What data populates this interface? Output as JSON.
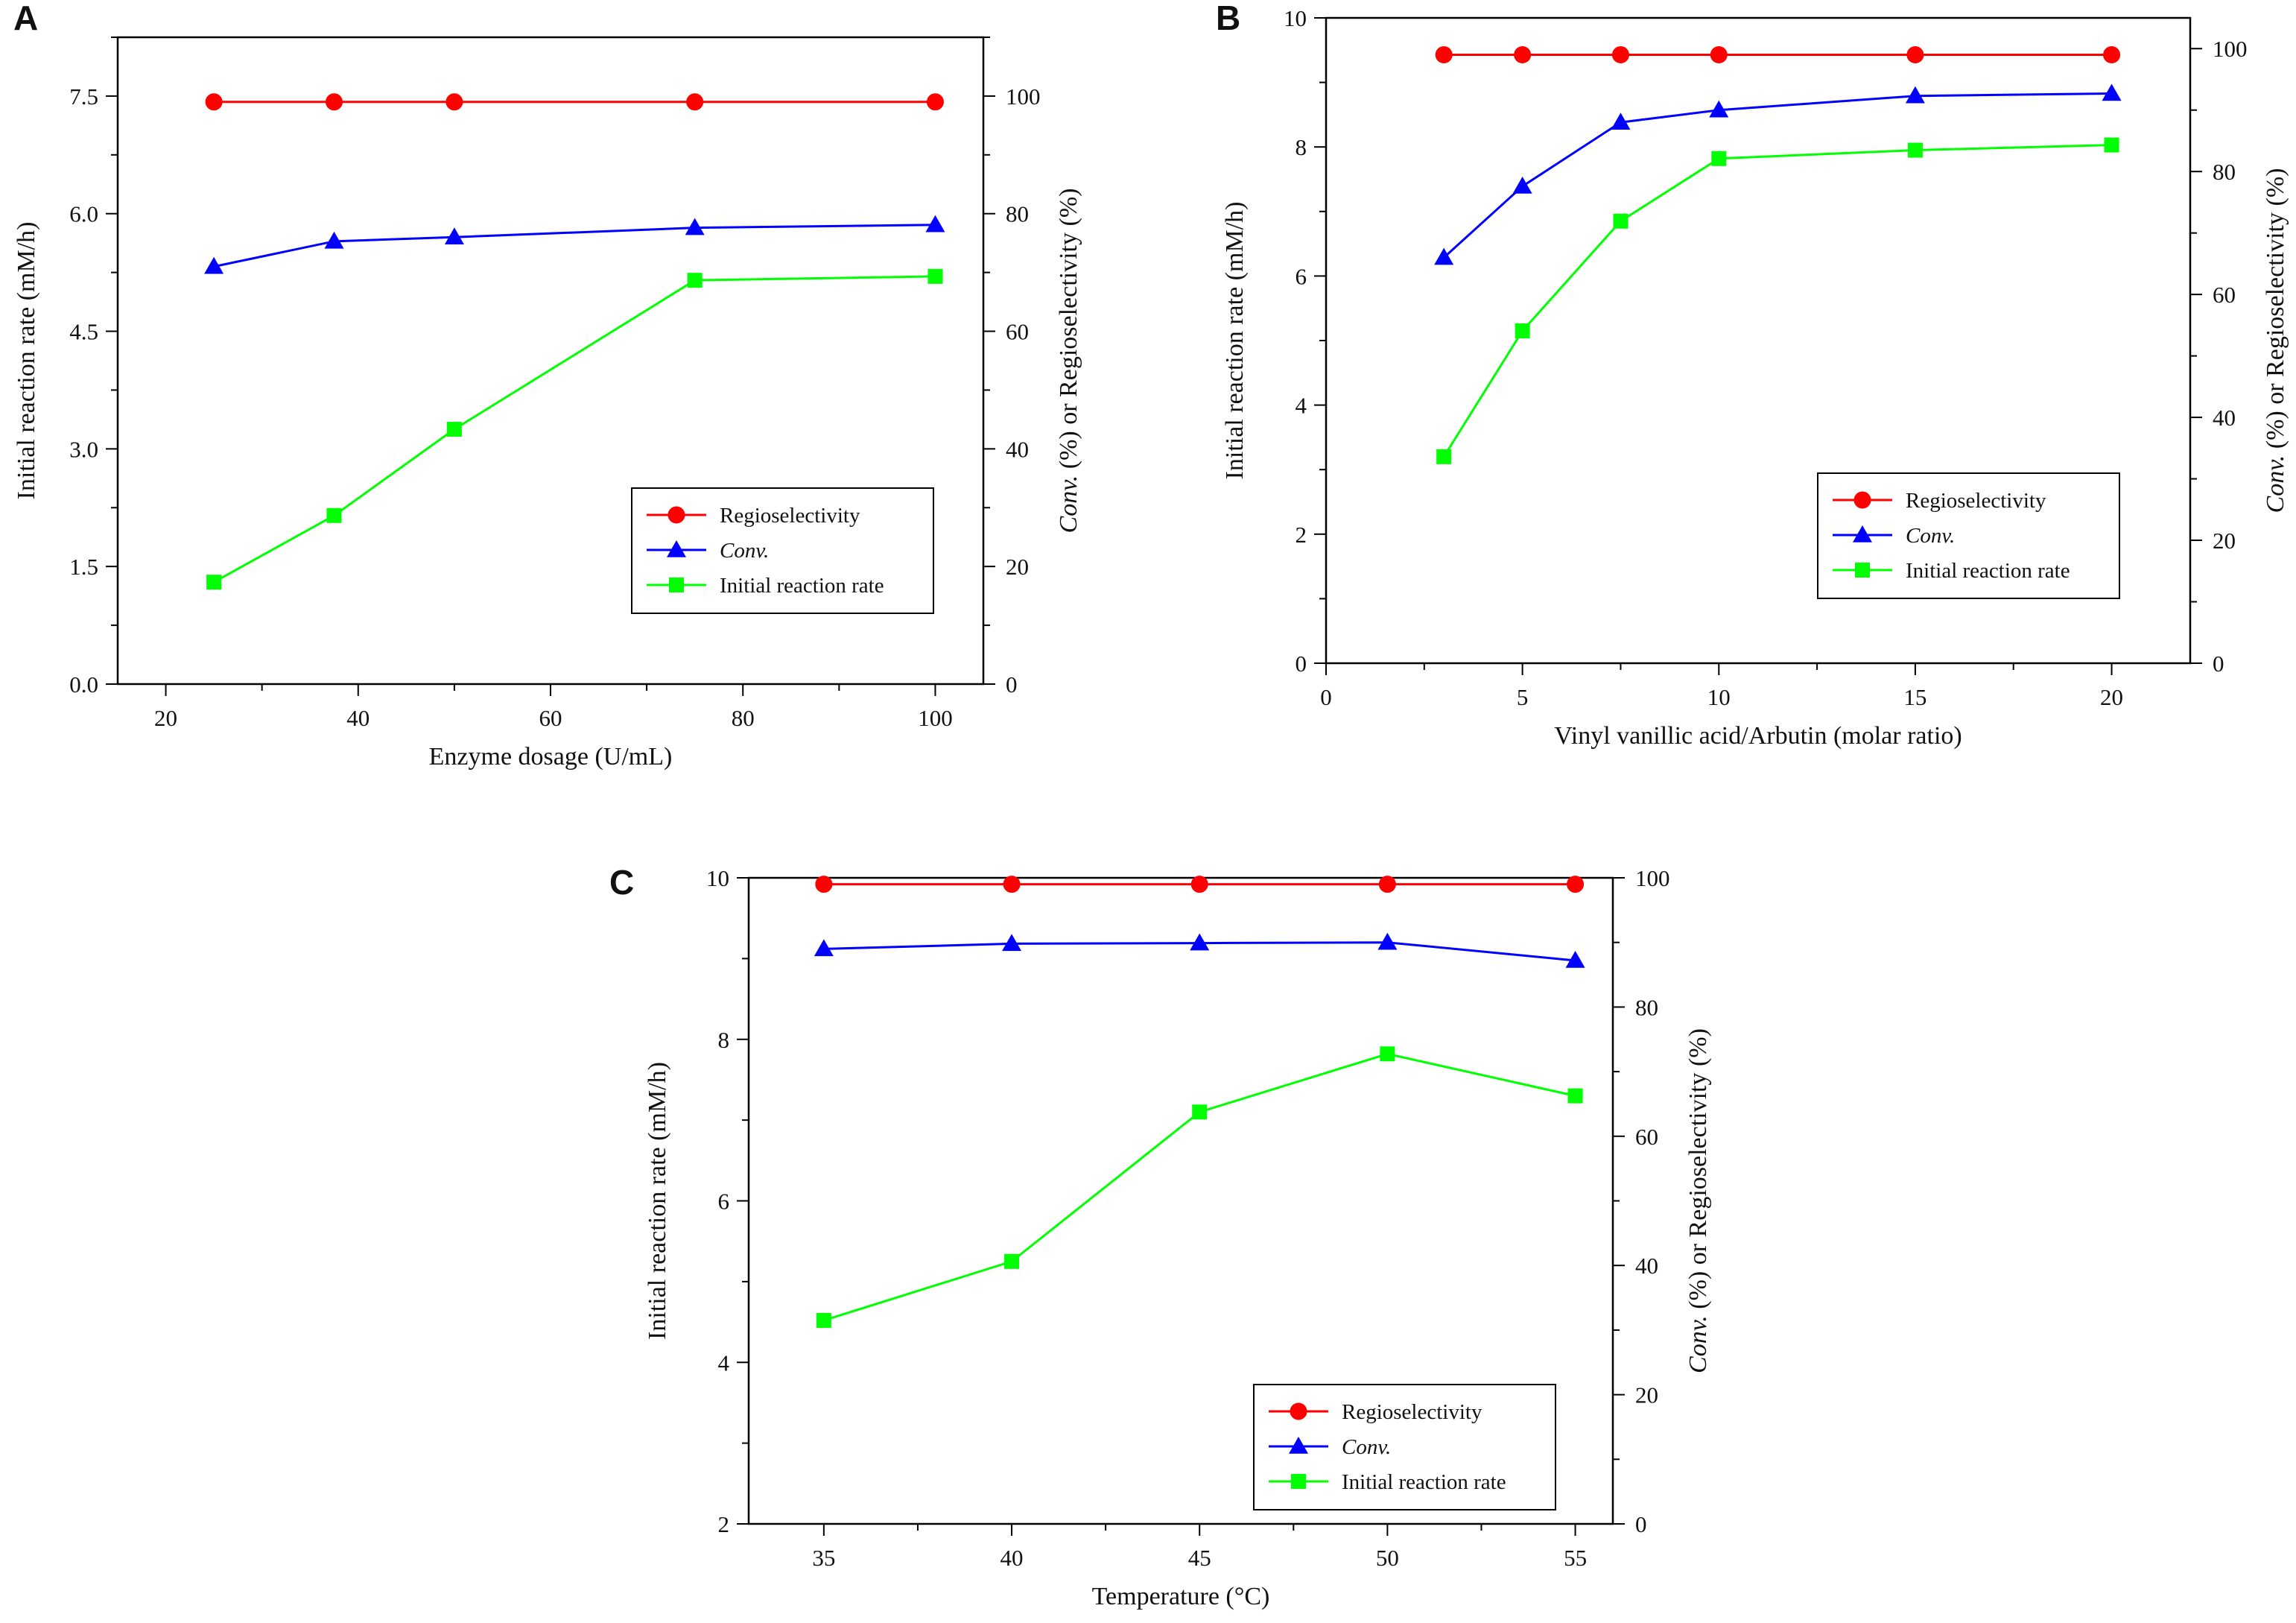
{
  "chart_data": [
    {
      "type": "line",
      "panel": "A",
      "xlabel": "Enzyme dosage (U/mL)",
      "ylabel": "Initial reaction rate (mM/h)",
      "y2label_italic": "Conv.",
      "y2label_rest": " (%) or Regioselectivity (%)",
      "xlim": [
        15,
        105
      ],
      "xticks": [
        20,
        40,
        60,
        80,
        100
      ],
      "xtick_labels": [
        "20",
        "40",
        "60",
        "80",
        "100"
      ],
      "ylim": [
        0,
        8.25
      ],
      "yticks": [
        0,
        1.5,
        3.0,
        4.5,
        6.0,
        7.5
      ],
      "ytick_labels": [
        "0.0",
        "1.5",
        "3.0",
        "4.5",
        "6.0",
        "7.5"
      ],
      "y2lim": [
        0,
        110
      ],
      "y2ticks": [
        0,
        20,
        40,
        60,
        80,
        100
      ],
      "y2tick_labels": [
        "0",
        "20",
        "40",
        "60",
        "80",
        "100"
      ],
      "legend": [
        "Regioselectivity",
        "Conv.",
        "Initial reaction rate"
      ],
      "legend_position": "bottom-right",
      "x": [
        25,
        37.5,
        50,
        75,
        100
      ],
      "series": [
        {
          "name": "Regioselectivity",
          "axis": "right",
          "color": "#ff0000",
          "marker": "circle",
          "values": [
            99,
            99,
            99,
            99,
            99
          ]
        },
        {
          "name": "Conv.",
          "axis": "right",
          "color": "#0000ff",
          "marker": "triangle",
          "values": [
            71,
            75.3,
            76,
            77.6,
            78.1
          ]
        },
        {
          "name": "Initial reaction rate",
          "axis": "left",
          "color": "#00ff00",
          "marker": "square",
          "values": [
            1.3,
            2.15,
            3.25,
            5.15,
            5.2
          ]
        }
      ]
    },
    {
      "type": "line",
      "panel": "B",
      "xlabel": "Vinyl vanillic acid/Arbutin (molar ratio)",
      "ylabel": "Initial reaction rate (mM/h)",
      "y2label_italic": "Conv.",
      "y2label_rest": " (%) or Regioselectivity (%)",
      "xlim": [
        0,
        22
      ],
      "xticks": [
        0,
        5,
        10,
        15,
        20
      ],
      "xtick_labels": [
        "0",
        "5",
        "10",
        "15",
        "20"
      ],
      "ylim": [
        0,
        10
      ],
      "yticks": [
        0,
        2,
        4,
        6,
        8,
        10
      ],
      "ytick_labels": [
        "0",
        "2",
        "4",
        "6",
        "8",
        "10"
      ],
      "y2lim": [
        0,
        105
      ],
      "y2ticks": [
        0,
        20,
        40,
        60,
        80,
        100
      ],
      "y2tick_labels": [
        "0",
        "20",
        "40",
        "60",
        "80",
        "100"
      ],
      "legend": [
        "Regioselectivity",
        "Conv.",
        "Initial reaction rate"
      ],
      "legend_position": "bottom-right",
      "x": [
        3,
        5,
        7.5,
        10,
        15,
        20
      ],
      "series": [
        {
          "name": "Regioselectivity",
          "axis": "right",
          "color": "#ff0000",
          "marker": "circle",
          "values": [
            99,
            99,
            99,
            99,
            99,
            99
          ]
        },
        {
          "name": "Conv.",
          "axis": "right",
          "color": "#0000ff",
          "marker": "triangle",
          "values": [
            66,
            77.6,
            88,
            90,
            92.3,
            92.7
          ]
        },
        {
          "name": "Initial reaction rate",
          "axis": "left",
          "color": "#00ff00",
          "marker": "square",
          "values": [
            3.2,
            5.15,
            6.85,
            7.82,
            7.95,
            8.03
          ]
        }
      ]
    },
    {
      "type": "line",
      "panel": "C",
      "xlabel": "Temperature (°C)",
      "ylabel": "Initial reaction rate (mM/h)",
      "y2label_italic": "Conv.",
      "y2label_rest": " (%) or Regioselectivity (%)",
      "xlim": [
        33,
        56
      ],
      "xticks": [
        35,
        40,
        45,
        50,
        55
      ],
      "xtick_labels": [
        "35",
        "40",
        "45",
        "50",
        "55"
      ],
      "ylim": [
        2,
        10
      ],
      "yticks": [
        2,
        4,
        6,
        8,
        10
      ],
      "ytick_labels": [
        "2",
        "4",
        "6",
        "8",
        "10"
      ],
      "y2lim": [
        0,
        100
      ],
      "y2ticks": [
        0,
        20,
        40,
        60,
        80,
        100
      ],
      "y2tick_labels": [
        "0",
        "20",
        "40",
        "60",
        "80",
        "100"
      ],
      "legend": [
        "Regioselectivity",
        "Conv.",
        "Initial reaction rate"
      ],
      "legend_position": "bottom-right",
      "x": [
        35,
        40,
        45,
        50,
        55
      ],
      "series": [
        {
          "name": "Regioselectivity",
          "axis": "right",
          "color": "#ff0000",
          "marker": "circle",
          "values": [
            99,
            99,
            99,
            99,
            99
          ]
        },
        {
          "name": "Conv.",
          "axis": "right",
          "color": "#0000ff",
          "marker": "triangle",
          "values": [
            89,
            89.8,
            89.9,
            90,
            87.2
          ]
        },
        {
          "name": "Initial reaction rate",
          "axis": "left",
          "color": "#00ff00",
          "marker": "square",
          "values": [
            4.52,
            5.25,
            7.1,
            7.82,
            7.3
          ]
        }
      ]
    }
  ]
}
